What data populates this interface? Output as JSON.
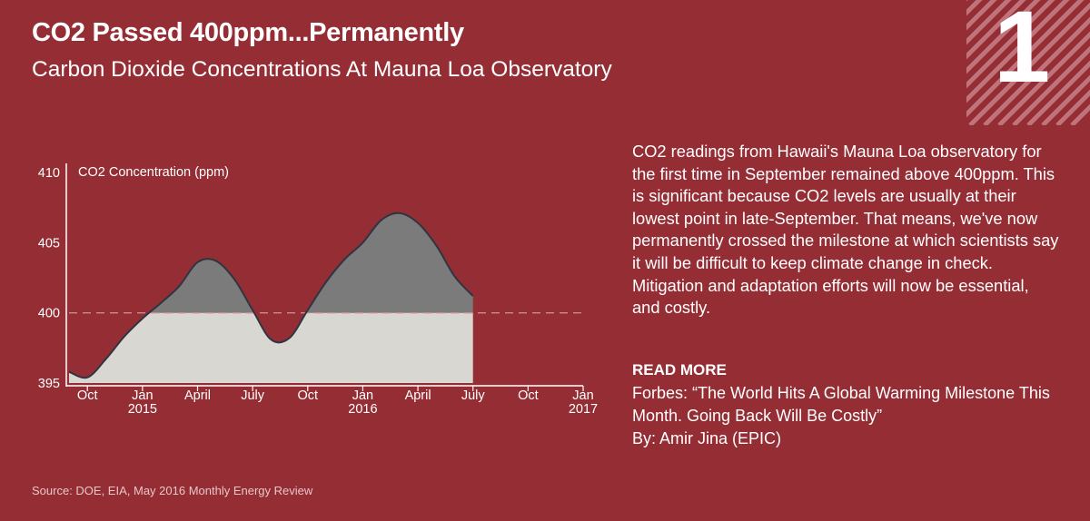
{
  "title": "CO2 Passed 400ppm...Permanently",
  "subtitle": "Carbon Dioxide Concentrations At Mauna Loa Observatory",
  "badge_number": "1",
  "description": "CO2 readings from Hawaii's Mauna Loa observatory for the first time in September remained above 400ppm. This is significant because CO2 levels are usually at their lowest point in late-September. That means, we've now permanently crossed the milestone at which scientists say it will be difficult to keep climate change in check. Mitigation and adaptation efforts will now be essential, and costly.",
  "read_more": {
    "heading": "READ MORE",
    "link_text": "Forbes: “The World Hits A Global Warming Milestone This Month. Going Back Will Be Costly”",
    "byline": "By: Amir Jina (EPIC)"
  },
  "source": "Source: DOE, EIA, May 2016 Monthly Energy Review",
  "colors": {
    "background": "#952d35",
    "above_400_fill": "#7b7b7b",
    "below_400_fill": "#d9d7d2",
    "line": "#2f3540",
    "reference_line": "#c98a90"
  },
  "chart_data": {
    "type": "area",
    "ylabel": "CO2 Concentration (ppm)",
    "ylim": [
      395,
      410
    ],
    "yticks": [
      395,
      400,
      405,
      410
    ],
    "reference_line": 400,
    "x_axis": {
      "min": "2014-09",
      "max": "2017-01",
      "ticks": [
        {
          "month": "2014-10",
          "label": "Oct",
          "year": ""
        },
        {
          "month": "2015-01",
          "label": "Jan",
          "year": "2015"
        },
        {
          "month": "2015-04",
          "label": "April",
          "year": ""
        },
        {
          "month": "2015-07",
          "label": "July",
          "year": ""
        },
        {
          "month": "2015-10",
          "label": "Oct",
          "year": ""
        },
        {
          "month": "2016-01",
          "label": "Jan",
          "year": "2016"
        },
        {
          "month": "2016-04",
          "label": "April",
          "year": ""
        },
        {
          "month": "2016-07",
          "label": "July",
          "year": ""
        },
        {
          "month": "2016-10",
          "label": "Oct",
          "year": ""
        },
        {
          "month": "2017-01",
          "label": "Jan",
          "year": "2017"
        }
      ]
    },
    "series": [
      {
        "points": [
          [
            "2014-09",
            395.8
          ],
          [
            "2014-10",
            395.4
          ],
          [
            "2014-11",
            396.7
          ],
          [
            "2014-12",
            398.3
          ],
          [
            "2015-01",
            399.6
          ],
          [
            "2015-02",
            400.7
          ],
          [
            "2015-03",
            401.9
          ],
          [
            "2015-04",
            403.6
          ],
          [
            "2015-05",
            403.7
          ],
          [
            "2015-06",
            402.4
          ],
          [
            "2015-07",
            400.2
          ],
          [
            "2015-08",
            398.1
          ],
          [
            "2015-09",
            398.2
          ],
          [
            "2015-10",
            400.2
          ],
          [
            "2015-11",
            402.2
          ],
          [
            "2015-12",
            403.8
          ],
          [
            "2016-01",
            405.0
          ],
          [
            "2016-02",
            406.6
          ],
          [
            "2016-03",
            407.1
          ],
          [
            "2016-04",
            406.4
          ],
          [
            "2016-05",
            404.8
          ],
          [
            "2016-06",
            402.6
          ],
          [
            "2016-07",
            401.2
          ]
        ]
      }
    ]
  }
}
